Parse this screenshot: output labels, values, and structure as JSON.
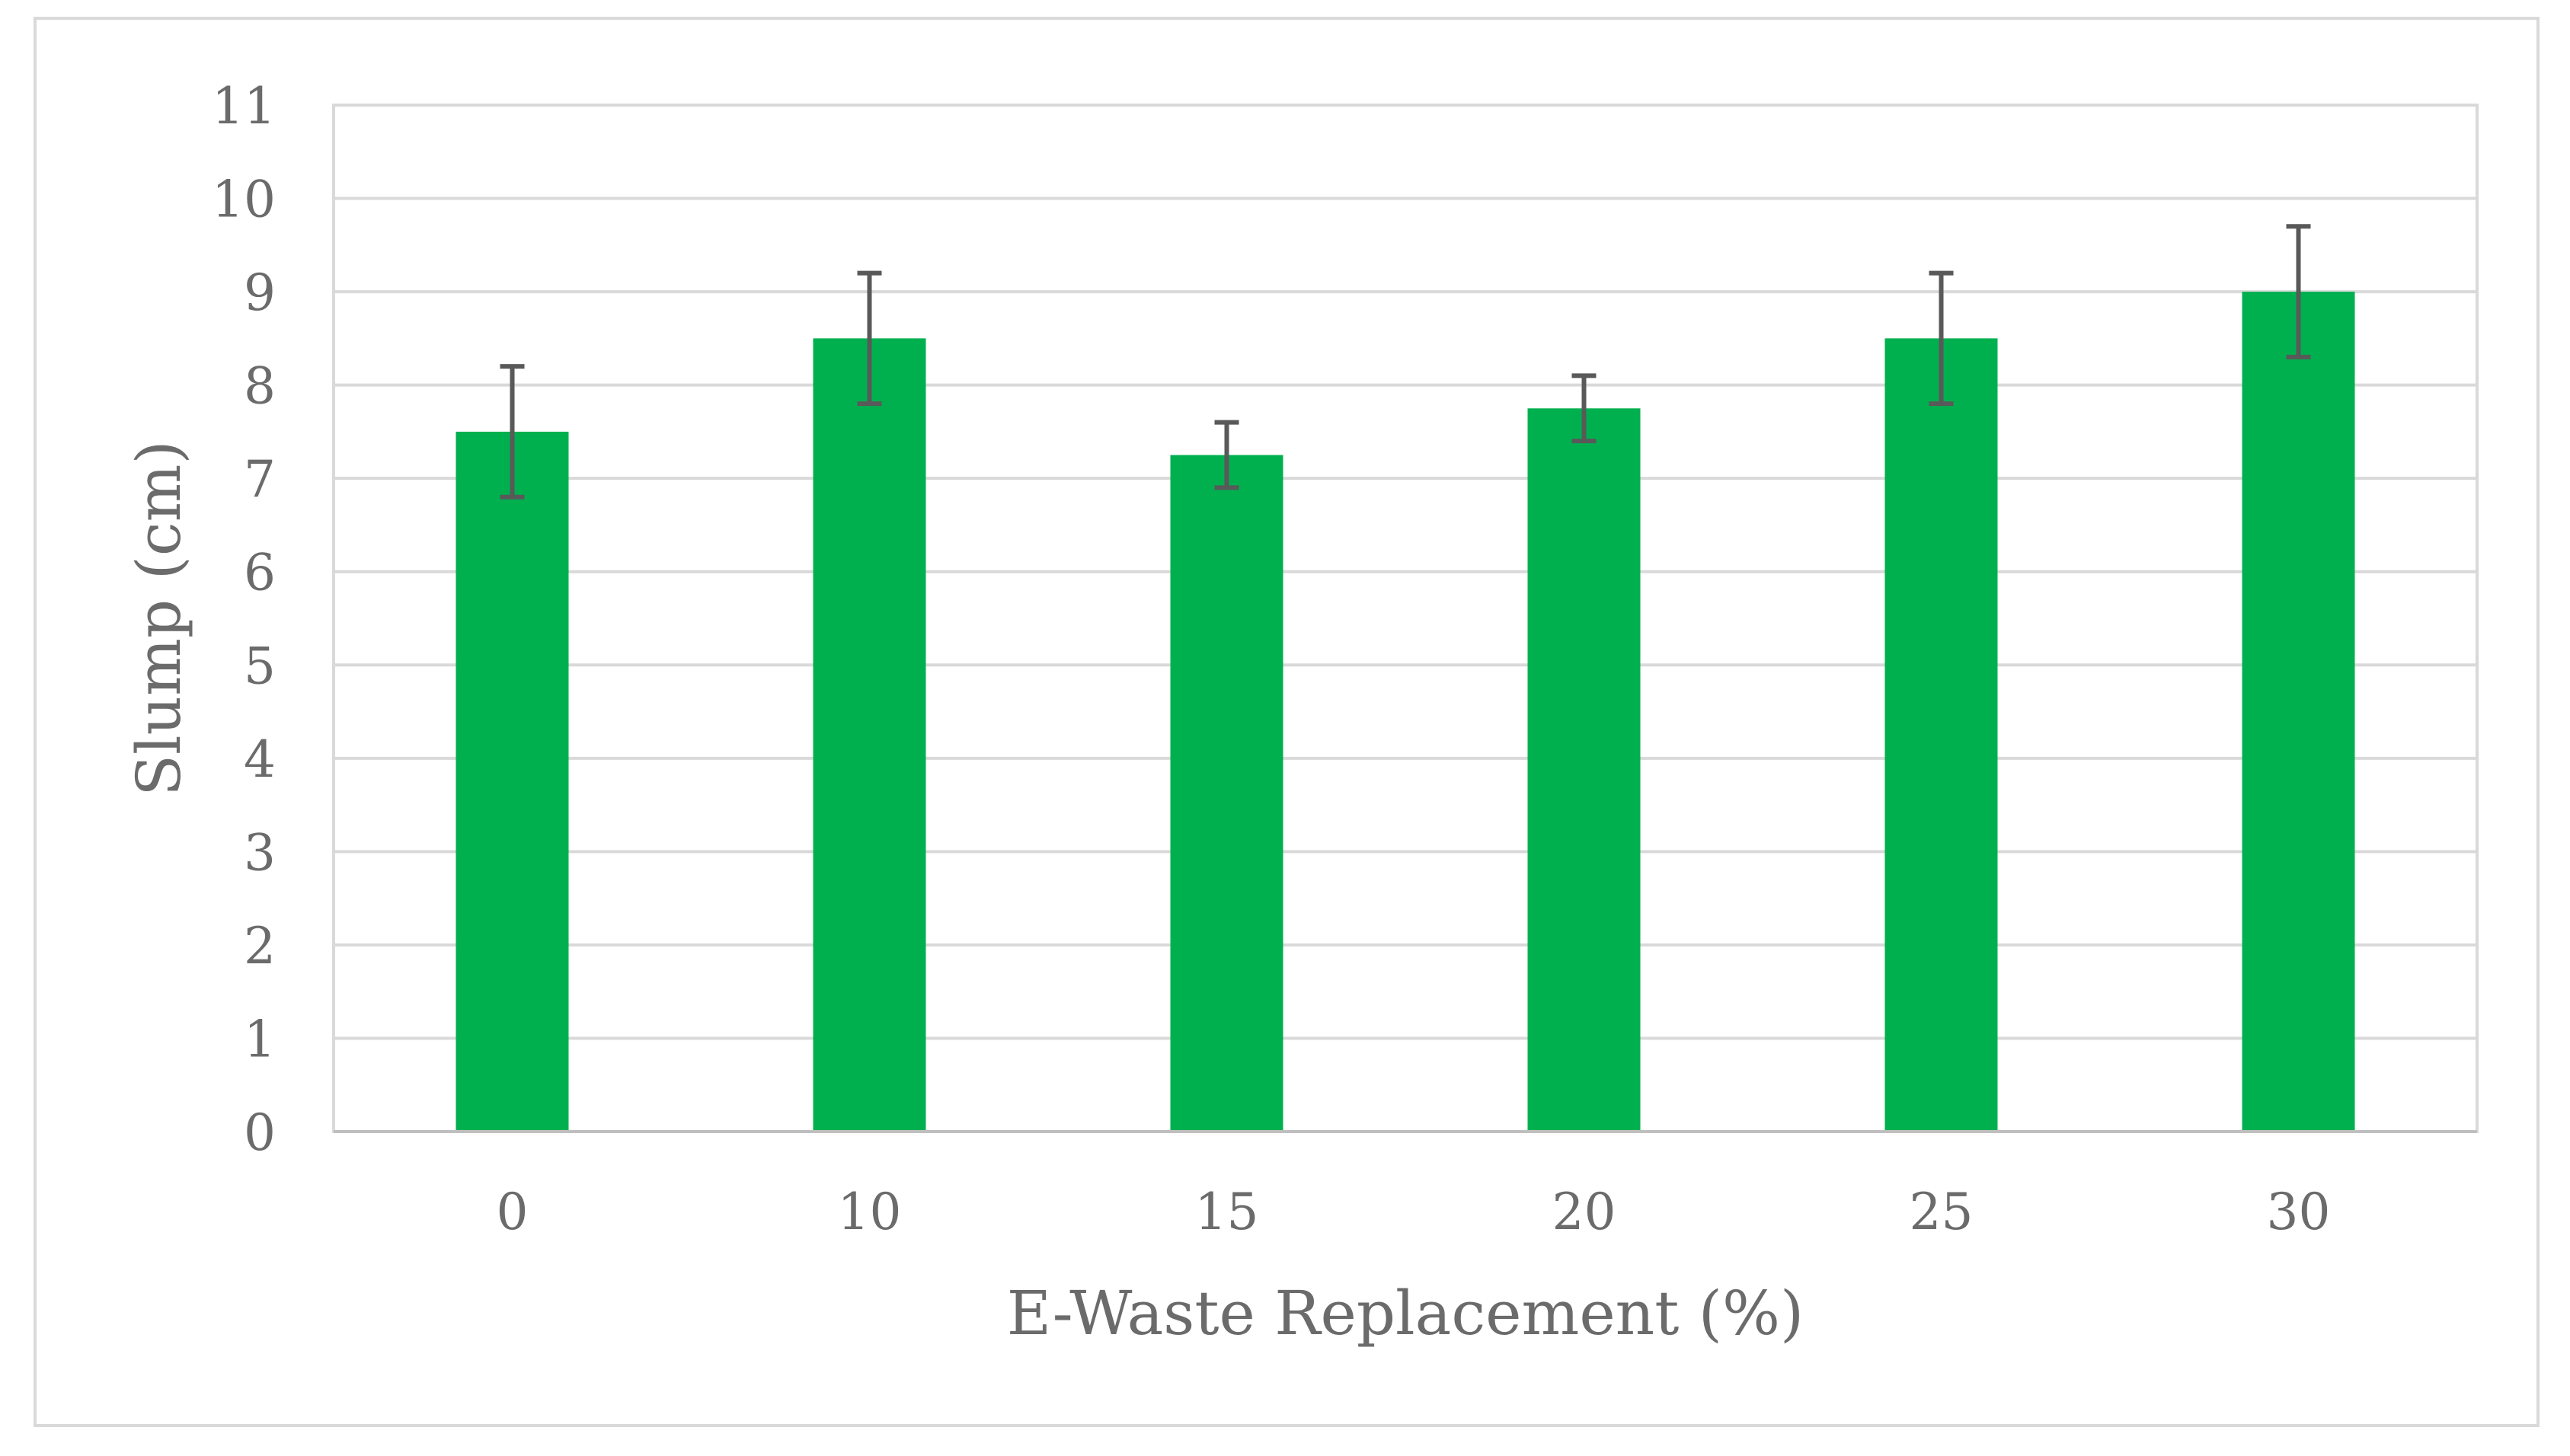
{
  "chart_data": {
    "type": "bar",
    "categories": [
      "0",
      "10",
      "15",
      "20",
      "25",
      "30"
    ],
    "series": [
      {
        "values": [
          7.5,
          8.5,
          7.25,
          7.75,
          8.5,
          9.0
        ],
        "error": [
          0.7,
          0.7,
          0.35,
          0.35,
          0.7,
          0.7
        ],
        "color": "#00b04f"
      }
    ],
    "title": "",
    "xlabel": "E-Waste Replacement (%)",
    "ylabel": "Slump (cm)",
    "ylim": [
      0,
      11
    ],
    "yticks": [
      "0",
      "1",
      "2",
      "3",
      "4",
      "5",
      "6",
      "7",
      "8",
      "9",
      "10",
      "11"
    ],
    "grid": true,
    "legend": "none",
    "colors": {
      "bar": "#00b04f",
      "error_bar": "#595959",
      "grid": "#d9d9d9",
      "text": "#6b6b6b"
    }
  }
}
